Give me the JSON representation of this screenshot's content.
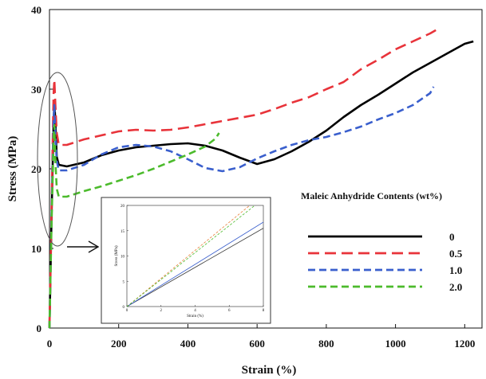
{
  "chart_data": {
    "type": "line",
    "xlabel": "Strain (%)",
    "ylabel": "Stress (MPa)",
    "xlim": [
      0,
      1250
    ],
    "ylim": [
      0,
      40
    ],
    "x_ticks": [
      "0",
      "200",
      "400",
      "600",
      "800",
      "1000",
      "1200"
    ],
    "y_ticks": [
      "0",
      "10",
      "20",
      "30",
      "40"
    ],
    "grid": false,
    "legend_title": "Maleic Anhydride Contents (wt%)",
    "legend_position": "right",
    "series": [
      {
        "name": "0",
        "color": "#000000",
        "dash": "solid",
        "points": [
          [
            0,
            0
          ],
          [
            6,
            14
          ],
          [
            10,
            22
          ],
          [
            12,
            26
          ],
          [
            14,
            28.3
          ],
          [
            17,
            26
          ],
          [
            21,
            21.5
          ],
          [
            27,
            20.5
          ],
          [
            50,
            20.3
          ],
          [
            100,
            20.8
          ],
          [
            150,
            21.7
          ],
          [
            200,
            22.3
          ],
          [
            250,
            22.7
          ],
          [
            300,
            22.9
          ],
          [
            350,
            23.1
          ],
          [
            400,
            23.2
          ],
          [
            450,
            22.9
          ],
          [
            500,
            22.3
          ],
          [
            550,
            21.4
          ],
          [
            600,
            20.6
          ],
          [
            650,
            21.2
          ],
          [
            700,
            22.2
          ],
          [
            750,
            23.4
          ],
          [
            800,
            24.8
          ],
          [
            850,
            26.5
          ],
          [
            900,
            28
          ],
          [
            950,
            29.3
          ],
          [
            1000,
            30.7
          ],
          [
            1050,
            32.1
          ],
          [
            1100,
            33.3
          ],
          [
            1150,
            34.5
          ],
          [
            1200,
            35.7
          ],
          [
            1225,
            36
          ]
        ]
      },
      {
        "name": "0.5",
        "color": "#e8333a",
        "dash": "long",
        "points": [
          [
            0,
            0
          ],
          [
            6,
            15
          ],
          [
            10,
            25
          ],
          [
            12,
            29.5
          ],
          [
            14,
            31.2
          ],
          [
            17,
            28
          ],
          [
            21,
            24.5
          ],
          [
            27,
            23
          ],
          [
            50,
            23
          ],
          [
            100,
            23.7
          ],
          [
            150,
            24.2
          ],
          [
            200,
            24.7
          ],
          [
            250,
            24.9
          ],
          [
            300,
            24.8
          ],
          [
            350,
            24.9
          ],
          [
            400,
            25.2
          ],
          [
            450,
            25.6
          ],
          [
            500,
            26
          ],
          [
            550,
            26.4
          ],
          [
            600,
            26.8
          ],
          [
            650,
            27.5
          ],
          [
            700,
            28.3
          ],
          [
            750,
            29
          ],
          [
            800,
            30
          ],
          [
            850,
            30.9
          ],
          [
            900,
            32.5
          ],
          [
            950,
            33.7
          ],
          [
            1000,
            35
          ],
          [
            1050,
            36
          ],
          [
            1100,
            37
          ],
          [
            1120,
            37.5
          ]
        ]
      },
      {
        "name": "1.0",
        "color": "#3a5fcd",
        "dash": "medium",
        "points": [
          [
            0,
            0
          ],
          [
            6,
            14
          ],
          [
            10,
            22
          ],
          [
            12,
            26
          ],
          [
            14,
            28
          ],
          [
            17,
            24
          ],
          [
            21,
            21
          ],
          [
            27,
            19.8
          ],
          [
            50,
            19.8
          ],
          [
            100,
            20.5
          ],
          [
            150,
            21.8
          ],
          [
            200,
            22.7
          ],
          [
            250,
            23
          ],
          [
            300,
            22.8
          ],
          [
            350,
            22.2
          ],
          [
            400,
            21.2
          ],
          [
            450,
            20.1
          ],
          [
            500,
            19.7
          ],
          [
            550,
            20.2
          ],
          [
            600,
            21.3
          ],
          [
            650,
            22.2
          ],
          [
            700,
            23
          ],
          [
            750,
            23.6
          ],
          [
            800,
            24
          ],
          [
            850,
            24.6
          ],
          [
            900,
            25.3
          ],
          [
            950,
            26.2
          ],
          [
            1000,
            27
          ],
          [
            1050,
            28
          ],
          [
            1100,
            29.5
          ],
          [
            1110,
            30.3
          ]
        ]
      },
      {
        "name": "2.0",
        "color": "#4cbb2c",
        "dash": "medium",
        "points": [
          [
            0,
            0
          ],
          [
            6,
            13
          ],
          [
            10,
            20
          ],
          [
            12,
            24
          ],
          [
            14,
            25.5
          ],
          [
            17,
            21
          ],
          [
            21,
            17.5
          ],
          [
            27,
            16.5
          ],
          [
            50,
            16.5
          ],
          [
            100,
            17.2
          ],
          [
            150,
            17.8
          ],
          [
            200,
            18.5
          ],
          [
            250,
            19.2
          ],
          [
            300,
            20
          ],
          [
            350,
            20.9
          ],
          [
            400,
            21.8
          ],
          [
            450,
            22.8
          ],
          [
            480,
            23.8
          ],
          [
            490,
            24.5
          ]
        ]
      }
    ],
    "inset": {
      "xlabel": "Strain (%)",
      "ylabel": "Stress (MPa)",
      "xlim": [
        0,
        8
      ],
      "ylim": [
        0,
        20
      ],
      "x_ticks": [
        "0",
        "2",
        "4",
        "6",
        "8"
      ],
      "y_ticks": [
        "0",
        "5",
        "10",
        "15",
        "20"
      ],
      "series": [
        {
          "name": "0",
          "color": "#3a3a3a",
          "dash": "solid",
          "points": [
            [
              0,
              0
            ],
            [
              8,
              15.5
            ]
          ]
        },
        {
          "name": "0.5",
          "color": "#e8803a",
          "dash": "short",
          "points": [
            [
              0,
              0
            ],
            [
              7.2,
              20
            ]
          ]
        },
        {
          "name": "1.0",
          "color": "#3a5fcd",
          "dash": "solid",
          "points": [
            [
              0,
              0
            ],
            [
              8,
              16.7
            ]
          ]
        },
        {
          "name": "2.0",
          "color": "#4cbb2c",
          "dash": "short",
          "points": [
            [
              0,
              0
            ],
            [
              7.5,
              20
            ]
          ]
        }
      ]
    }
  }
}
